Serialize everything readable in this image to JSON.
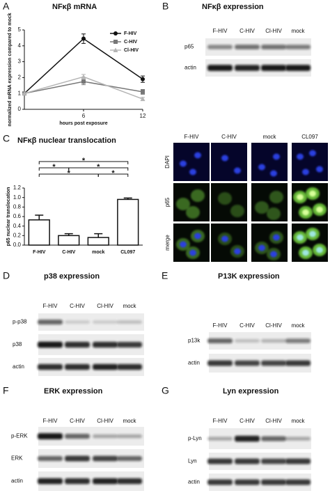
{
  "chart_data": [
    {
      "type": "line",
      "panel": "A",
      "title": "NFκβ mRNA",
      "ylabel": "normalized mRNA expression compared to mock",
      "xlabel": "hours post exposure",
      "x": [
        0,
        6,
        12
      ],
      "xlim": [
        0,
        12
      ],
      "xticks": [
        6,
        12
      ],
      "ylim": [
        0,
        5
      ],
      "yticks": [
        0,
        1,
        2,
        3,
        4,
        5
      ],
      "series": [
        {
          "name": "F-HIV",
          "color": "#111111",
          "marker": "circle",
          "values": [
            1,
            4.45,
            1.9
          ],
          "errors": [
            0,
            0.3,
            0.2
          ]
        },
        {
          "name": "C-HIV",
          "color": "#777777",
          "marker": "square",
          "values": [
            1,
            1.75,
            1.1
          ],
          "errors": [
            0,
            0.2,
            0.15
          ]
        },
        {
          "name": "Cl-HIV",
          "color": "#b5b5b5",
          "marker": "triangle",
          "values": [
            1,
            2.05,
            0.65
          ],
          "errors": [
            0,
            0.15,
            0.1
          ]
        }
      ]
    },
    {
      "type": "bar",
      "panel": "C",
      "title": "NFκβ nuclear translocation",
      "ylabel": "p65 nuclear translocation",
      "categories": [
        "F-HIV",
        "C-HIV",
        "mock",
        "CL097"
      ],
      "values": [
        0.53,
        0.2,
        0.16,
        0.96
      ],
      "errors": [
        0.1,
        0.04,
        0.08,
        0.03
      ],
      "color": "#ffffff",
      "ylim": [
        0,
        1.2
      ],
      "yticks": [
        {
          "value": 0,
          "label": "0.0"
        },
        0.2,
        0.4,
        0.6,
        0.8,
        {
          "value": 1,
          "label": "1.0"
        },
        1.2
      ],
      "annotations": [
        "*",
        "*",
        "*",
        "*",
        "*"
      ]
    }
  ],
  "microscopy": {
    "columns": [
      "F-HIV",
      "C-HIV",
      "mock",
      "CL097"
    ],
    "rows": [
      "DAPI",
      "p65",
      "merge"
    ]
  },
  "blots": [
    {
      "panel": "B",
      "title": "NFκβ expression",
      "lanes": [
        "F-HIV",
        "C-HIV",
        "Cl-HIV",
        "mock"
      ],
      "rows": [
        "p65",
        "actin"
      ]
    },
    {
      "panel": "D",
      "title": "p38 expression",
      "lanes": [
        "F-HIV",
        "C-HIV",
        "Cl-HIV",
        "mock"
      ],
      "rows": [
        "p-p38",
        "p38",
        "actin"
      ]
    },
    {
      "panel": "E",
      "title": "P13K expression",
      "lanes": [
        "F-HIV",
        "C-HIV",
        "Cl-HIV",
        "mock"
      ],
      "rows": [
        "p13k",
        "actin"
      ]
    },
    {
      "panel": "F",
      "title": "ERK expression",
      "lanes": [
        "F-HIV",
        "C-HIV",
        "Cl-HIV",
        "mock"
      ],
      "rows": [
        "p-ERK",
        "ERK",
        "actin"
      ]
    },
    {
      "panel": "G",
      "title": "Lyn expression",
      "lanes": [
        "F-HIV",
        "C-HIV",
        "Cl-HIV",
        "mock"
      ],
      "rows": [
        "p-Lyn",
        "Lyn",
        "actin"
      ]
    }
  ]
}
